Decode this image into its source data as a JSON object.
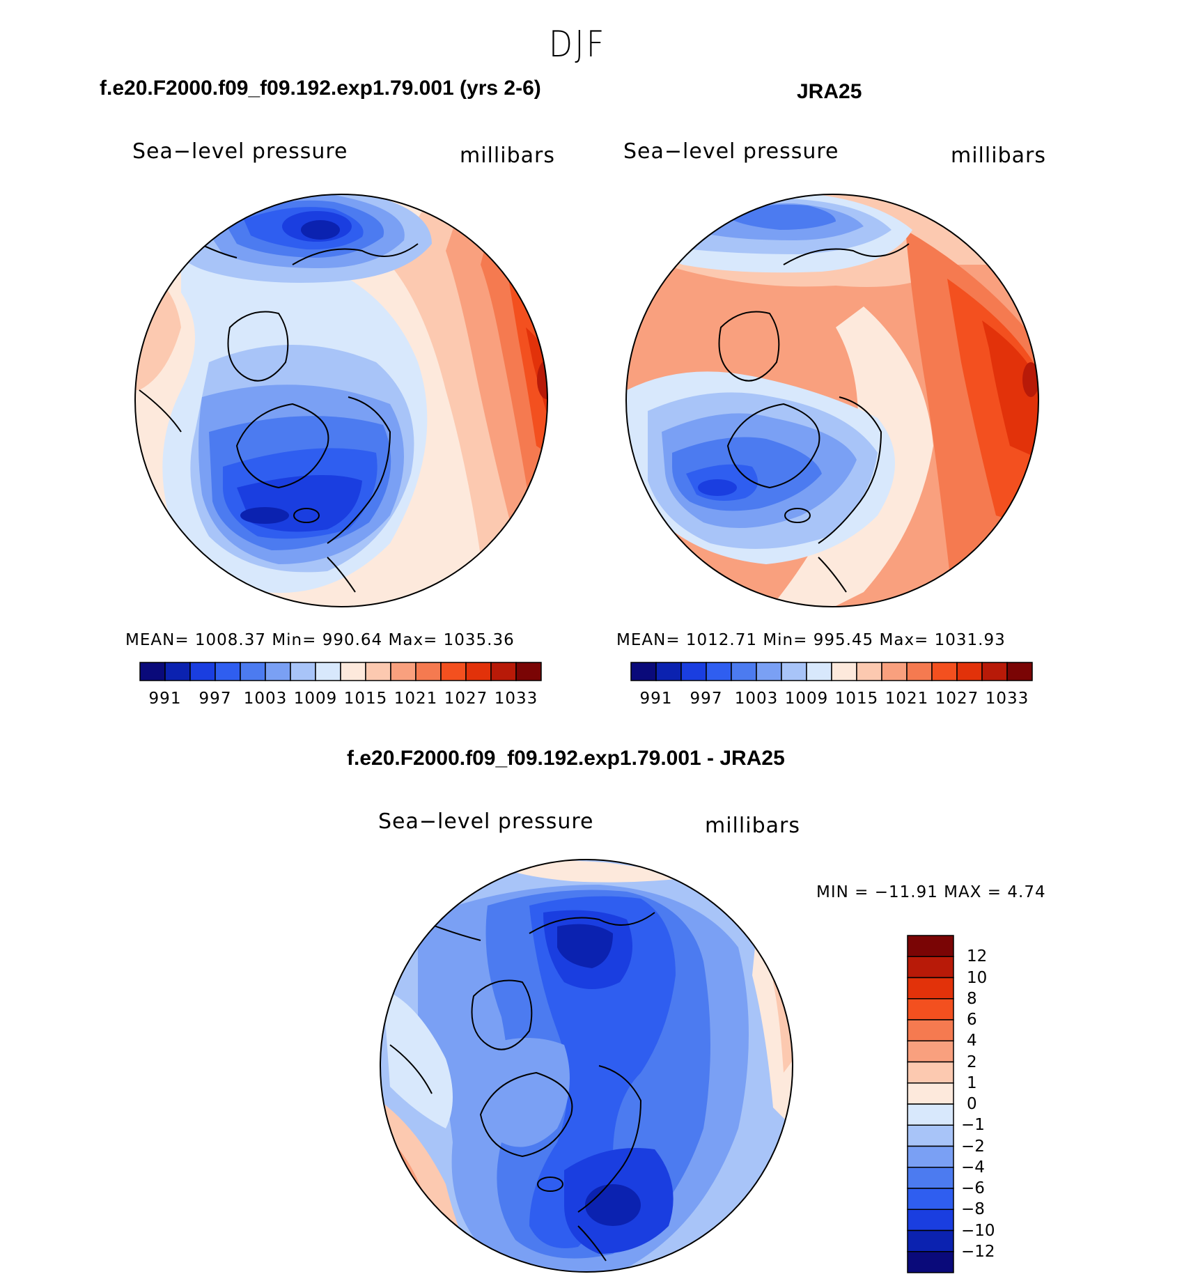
{
  "title": "DJF",
  "panels": [
    {
      "case_title": "f.e20.F2000.f09_f09.192.exp1.79.001 (yrs 2-6)",
      "variable": "Sea−level pressure",
      "units": "millibars",
      "stats_text": "MEAN=  1008.37   Min=  990.64   Max=  1035.36"
    },
    {
      "case_title": "JRA25",
      "variable": "Sea−level pressure",
      "units": "millibars",
      "stats_text": "MEAN=  1012.71   Min=  995.45   Max=  1031.93"
    },
    {
      "case_title": "f.e20.F2000.f09_f09.192.exp1.79.001 - JRA25",
      "variable": "Sea−level pressure",
      "units": "millibars",
      "stats_text": "MIN  =  −11.91  MAX  =     4.74"
    }
  ],
  "chart_data": {
    "type": "map",
    "projection": "polar stereographic (Northern Hemisphere)",
    "field_colorbar": {
      "tick_labels": [
        "991",
        "997",
        "1003",
        "1009",
        "1015",
        "1021",
        "1027",
        "1033"
      ],
      "colors": [
        "#0a0a7a",
        "#0b22b0",
        "#1a3ee0",
        "#2f5ef0",
        "#4c7bf0",
        "#7aa0f4",
        "#a8c4f8",
        "#d8e8fc",
        "#fde9dc",
        "#fcc9b0",
        "#f9a07e",
        "#f57a50",
        "#f3501f",
        "#e2320a",
        "#b81a08",
        "#7a0505"
      ]
    },
    "difference_colorbar": {
      "tick_labels": [
        "12",
        "10",
        "8",
        "6",
        "4",
        "2",
        "1",
        "0",
        "−1",
        "−2",
        "−4",
        "−6",
        "−8",
        "−10",
        "−12"
      ],
      "colors": [
        "#7a0505",
        "#b81a08",
        "#e2320a",
        "#f3501f",
        "#f57a50",
        "#f9a07e",
        "#fcc9b0",
        "#fde9dc",
        "#d8e8fc",
        "#a8c4f8",
        "#7aa0f4",
        "#4c7bf0",
        "#2f5ef0",
        "#1a3ee0",
        "#0b22b0",
        "#0a0a7a"
      ]
    }
  }
}
